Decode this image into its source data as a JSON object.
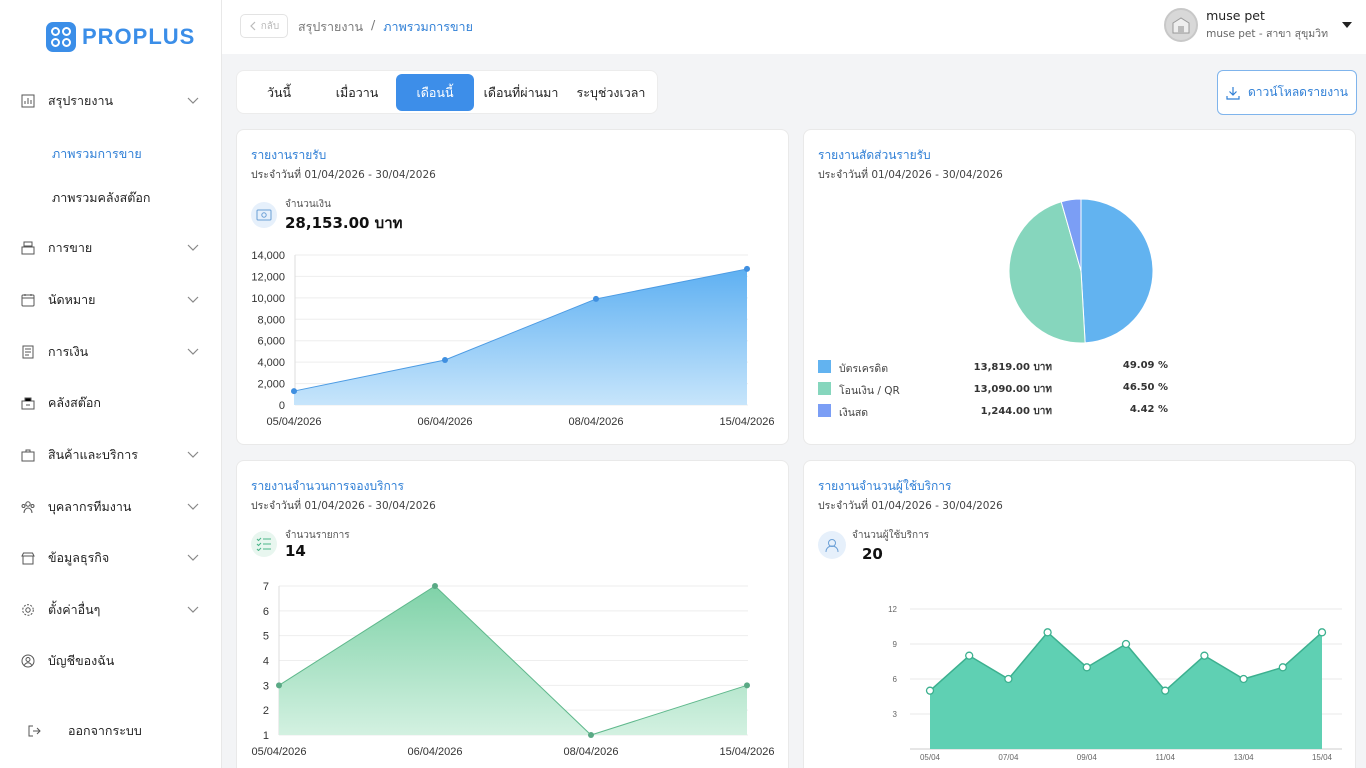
{
  "brand": {
    "name": "PROPLUS"
  },
  "sidebar": {
    "items": [
      {
        "label": "สรุปรายงาน",
        "icon": "report-chart-icon"
      },
      {
        "label": "การขาย",
        "icon": "cash-register-icon"
      },
      {
        "label": "นัดหมาย",
        "icon": "calendar-icon"
      },
      {
        "label": "การเงิน",
        "icon": "document-icon"
      },
      {
        "label": "คลังสต๊อก",
        "icon": "stock-box-icon"
      },
      {
        "label": "สินค้าและบริการ",
        "icon": "briefcase-icon"
      },
      {
        "label": "บุคลากรทีมงาน",
        "icon": "team-icon"
      },
      {
        "label": "ข้อมูลธุรกิจ",
        "icon": "store-icon"
      },
      {
        "label": "ตั้งค่าอื่นๆ",
        "icon": "gear-icon"
      },
      {
        "label": "บัญชีของฉัน",
        "icon": "user-circle-icon"
      }
    ],
    "sub_items": [
      {
        "label": "ภาพรวมการขาย"
      },
      {
        "label": "ภาพรวมคลังสต๊อก"
      }
    ],
    "logout_label": "ออกจากระบบ"
  },
  "topbar": {
    "back_label": "กลับ",
    "breadcrumb_parent": "สรุปรายงาน",
    "breadcrumb_sep": "/",
    "breadcrumb_current": "ภาพรวมการขาย",
    "user_name": "muse pet",
    "user_branch": "muse pet - สาขา สุขุมวิท"
  },
  "tabs": [
    {
      "label": "วันนี้"
    },
    {
      "label": "เมื่อวาน"
    },
    {
      "label": "เดือนนี้"
    },
    {
      "label": "เดือนที่ผ่านมา"
    },
    {
      "label": "ระบุช่วงเวลา"
    }
  ],
  "active_tab": 2,
  "download_label": "ดาวน์โหลดรายงาน",
  "colors": {
    "accent": "#3d8ee9",
    "revenue": "#6bb6f3",
    "green_area": "#93dcb4",
    "teal_area": "#5fd0b3",
    "pie_card": "#62b3f0",
    "pie_transfer": "#86d6bd",
    "pie_cash": "#7b9ef5"
  },
  "revenue_card": {
    "title": "รายงานรายรับ",
    "date_range": "ประจำวันที่ 01/04/2026 - 30/04/2026",
    "stat_label": "จำนวนเงิน",
    "stat_value": "28,153.00 บาท"
  },
  "share_card": {
    "title": "รายงานสัดส่วนรายรับ",
    "date_range": "ประจำวันที่ 01/04/2026 - 30/04/2026",
    "legend": [
      {
        "name": "บัตรเครดิต",
        "amount": "13,819.00 บาท",
        "percent": "49.09 %",
        "value": 49.09,
        "color": "#62b3f0"
      },
      {
        "name": "โอนเงิน / QR",
        "amount": "13,090.00 บาท",
        "percent": "46.50 %",
        "value": 46.5,
        "color": "#86d6bd"
      },
      {
        "name": "เงินสด",
        "amount": "1,244.00 บาท",
        "percent": "4.42 %",
        "value": 4.42,
        "color": "#7b9ef5"
      }
    ]
  },
  "booking_card": {
    "title": "รายงานจำนวนการจองบริการ",
    "date_range": "ประจำวันที่ 01/04/2026 - 30/04/2026",
    "stat_label": "จำนวนรายการ",
    "stat_value": "14"
  },
  "customer_card": {
    "title": "รายงานจำนวนผู้ใช้บริการ",
    "date_range": "ประจำวันที่ 01/04/2026 - 30/04/2026",
    "stat_label": "จำนวนผู้ใช้บริการ",
    "stat_value": "20"
  },
  "chart_data": [
    {
      "type": "area",
      "x": [
        "05/04/2026",
        "06/04/2026",
        "08/04/2026",
        "15/04/2026"
      ],
      "values": [
        1300,
        4200,
        9900,
        12700
      ],
      "yticks": [
        "14,000",
        "12,000",
        "10,000",
        "8,000",
        "6,000",
        "4,000",
        "2,000",
        "0"
      ],
      "ylim": [
        0,
        14000
      ]
    },
    {
      "type": "pie",
      "categories": [
        "บัตรเครดิต",
        "โอนเงิน / QR",
        "เงินสด"
      ],
      "values": [
        49.09,
        46.5,
        4.42
      ]
    },
    {
      "type": "area",
      "x": [
        "05/04/2026",
        "06/04/2026",
        "08/04/2026",
        "15/04/2026"
      ],
      "values": [
        3,
        7,
        1,
        3
      ],
      "yticks": [
        "7",
        "6",
        "5",
        "4",
        "3",
        "2",
        "1"
      ],
      "ylim": [
        1,
        7
      ]
    },
    {
      "type": "area",
      "x_ticks": [
        "05/04",
        "07/04",
        "09/04",
        "11/04",
        "13/04",
        "15/04"
      ],
      "values": [
        5,
        8,
        6,
        10,
        7,
        9,
        5,
        8,
        6,
        7,
        10
      ],
      "yticks": [
        "12",
        "9",
        "6",
        "3"
      ],
      "ylim": [
        0,
        12
      ]
    }
  ]
}
